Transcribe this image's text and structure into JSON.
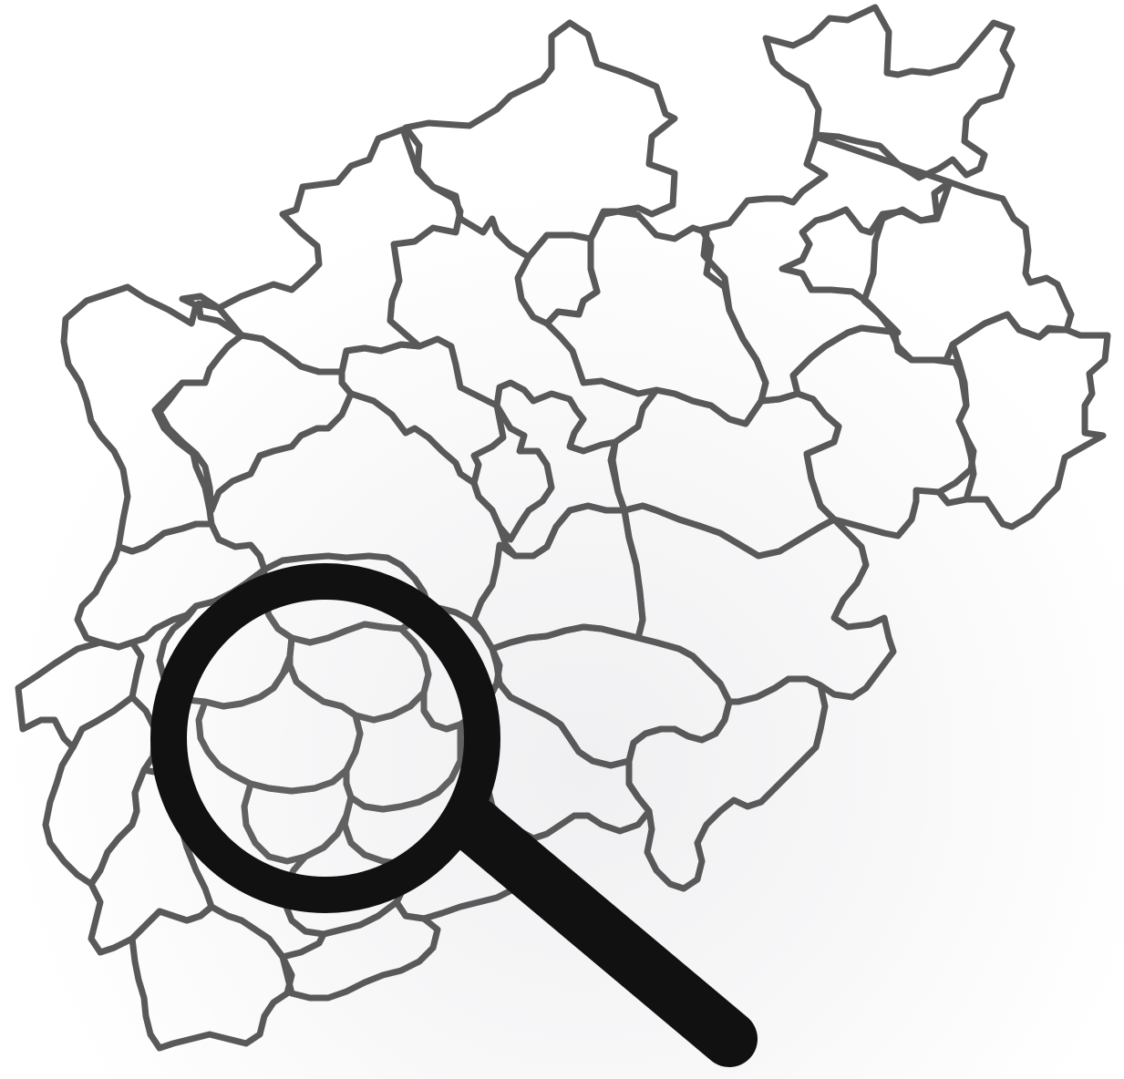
{
  "image": {
    "subject": "district-map-search",
    "background_color": "#ffffff",
    "outline_color": "#595959",
    "magnifier_color": "#111111"
  },
  "icons": [
    "magnifying-glass-icon"
  ]
}
